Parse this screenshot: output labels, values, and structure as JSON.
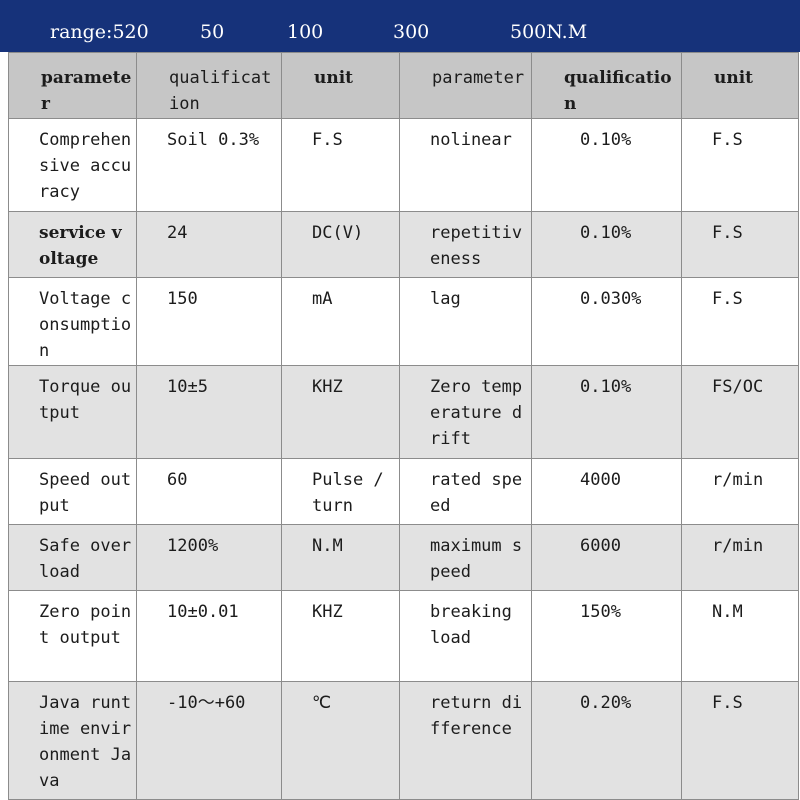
{
  "banner": {
    "label": "range:520",
    "r1": "50",
    "r2": "100",
    "r3": "300",
    "r4": "500N.M"
  },
  "headers": {
    "p1": "parameter",
    "q1": "qualification",
    "u1": "unit",
    "p2": "parameter",
    "q2": "qualification",
    "u2": "unit"
  },
  "rows": [
    {
      "p1": "Comprehensive accuracy",
      "v1": "Soil 0.3%",
      "u1": "F.S",
      "p2": "nolinear",
      "v2": "0.10%",
      "u2": "F.S"
    },
    {
      "p1": "service voltage",
      "v1": "24",
      "u1": "DC(V)",
      "p2": "repetitiveness",
      "v2": "0.10%",
      "u2": "F.S"
    },
    {
      "p1": "Voltage consumption",
      "v1": "150",
      "u1": "mA",
      "p2": "lag",
      "v2": "0.030%",
      "u2": "F.S"
    },
    {
      "p1": "Torque output",
      "v1": "10±5",
      "u1": "KHZ",
      "p2": "Zero temperature drift",
      "v2": "0.10%",
      "u2": "FS/OC"
    },
    {
      "p1": "Speed output",
      "v1": "60",
      "u1": "Pulse / turn",
      "p2": "rated speed",
      "v2": "4000",
      "u2": "r/min"
    },
    {
      "p1": "Safe overload",
      "v1": "1200%",
      "u1": "N.M",
      "p2": "maximum speed",
      "v2": "6000",
      "u2": "r/min"
    },
    {
      "p1": "Zero point output",
      "v1": "10±0.01",
      "u1": "KHZ",
      "p2": "breaking load",
      "v2": "150%",
      "u2": "N.M"
    },
    {
      "p1": "Java runtime environment Java",
      "v1": "-10～+60",
      "u1": "℃",
      "p2": "return difference",
      "v2": "0.20%",
      "u2": "F.S"
    }
  ]
}
